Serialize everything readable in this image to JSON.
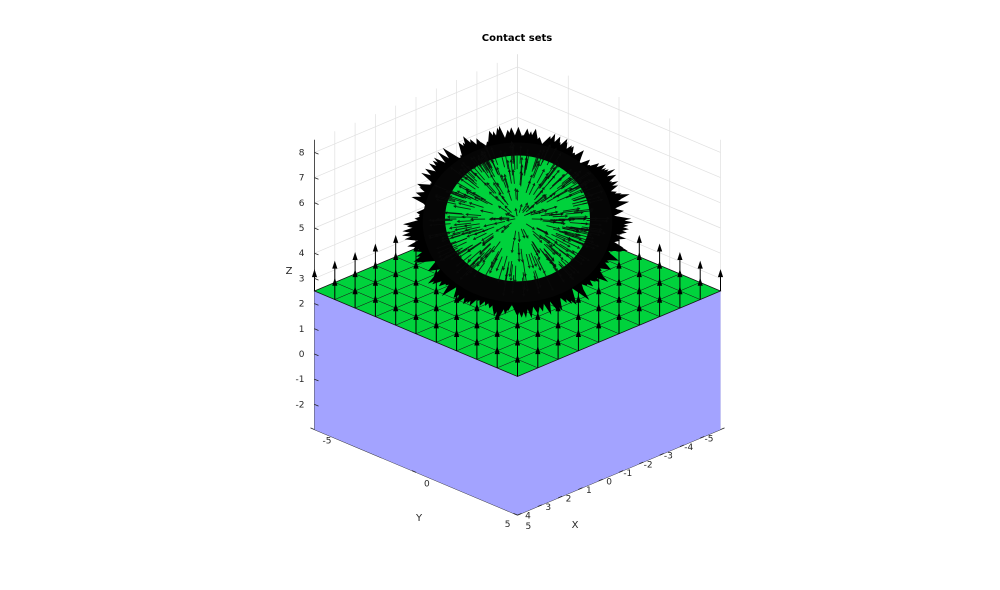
{
  "chart_data": {
    "type": "3d-surface-quiver",
    "title": "Contact sets",
    "xlabel": "X",
    "ylabel": "Y",
    "zlabel": "Z",
    "xlim": [
      -5,
      5
    ],
    "ylim": [
      -5,
      5
    ],
    "zlim": [
      -3,
      8.5
    ],
    "xticks": [
      "-5",
      "0",
      "5"
    ],
    "yticks": [
      "-5",
      "-4",
      "-3",
      "-2",
      "-1",
      "0",
      "1",
      "2",
      "3",
      "4",
      "5"
    ],
    "zticks": [
      "-2",
      "-1",
      "0",
      "1",
      "2",
      "3",
      "4",
      "5",
      "6",
      "7",
      "8"
    ],
    "grid": true,
    "objects": [
      {
        "name": "box",
        "kind": "box",
        "x": [
          -5,
          5
        ],
        "y": [
          -5,
          5
        ],
        "z": [
          -3,
          2.5
        ],
        "color": "#a3a3ff",
        "top_color": "#00d23c"
      },
      {
        "name": "sphere",
        "kind": "sphere",
        "center": [
          0,
          0,
          5.3
        ],
        "radius": 3.0,
        "color": "#00d23c"
      },
      {
        "name": "top-normals",
        "kind": "quiver",
        "direction": [
          0,
          0,
          1
        ],
        "color": "#000000"
      },
      {
        "name": "sphere-normals",
        "kind": "quiver-radial",
        "color": "#000000"
      }
    ],
    "colors": {
      "box_face": "#a3a3ff",
      "contact_face": "#00d23c",
      "arrows": "#000000",
      "grid": "#e0e0e0",
      "axis": "#262626"
    }
  }
}
